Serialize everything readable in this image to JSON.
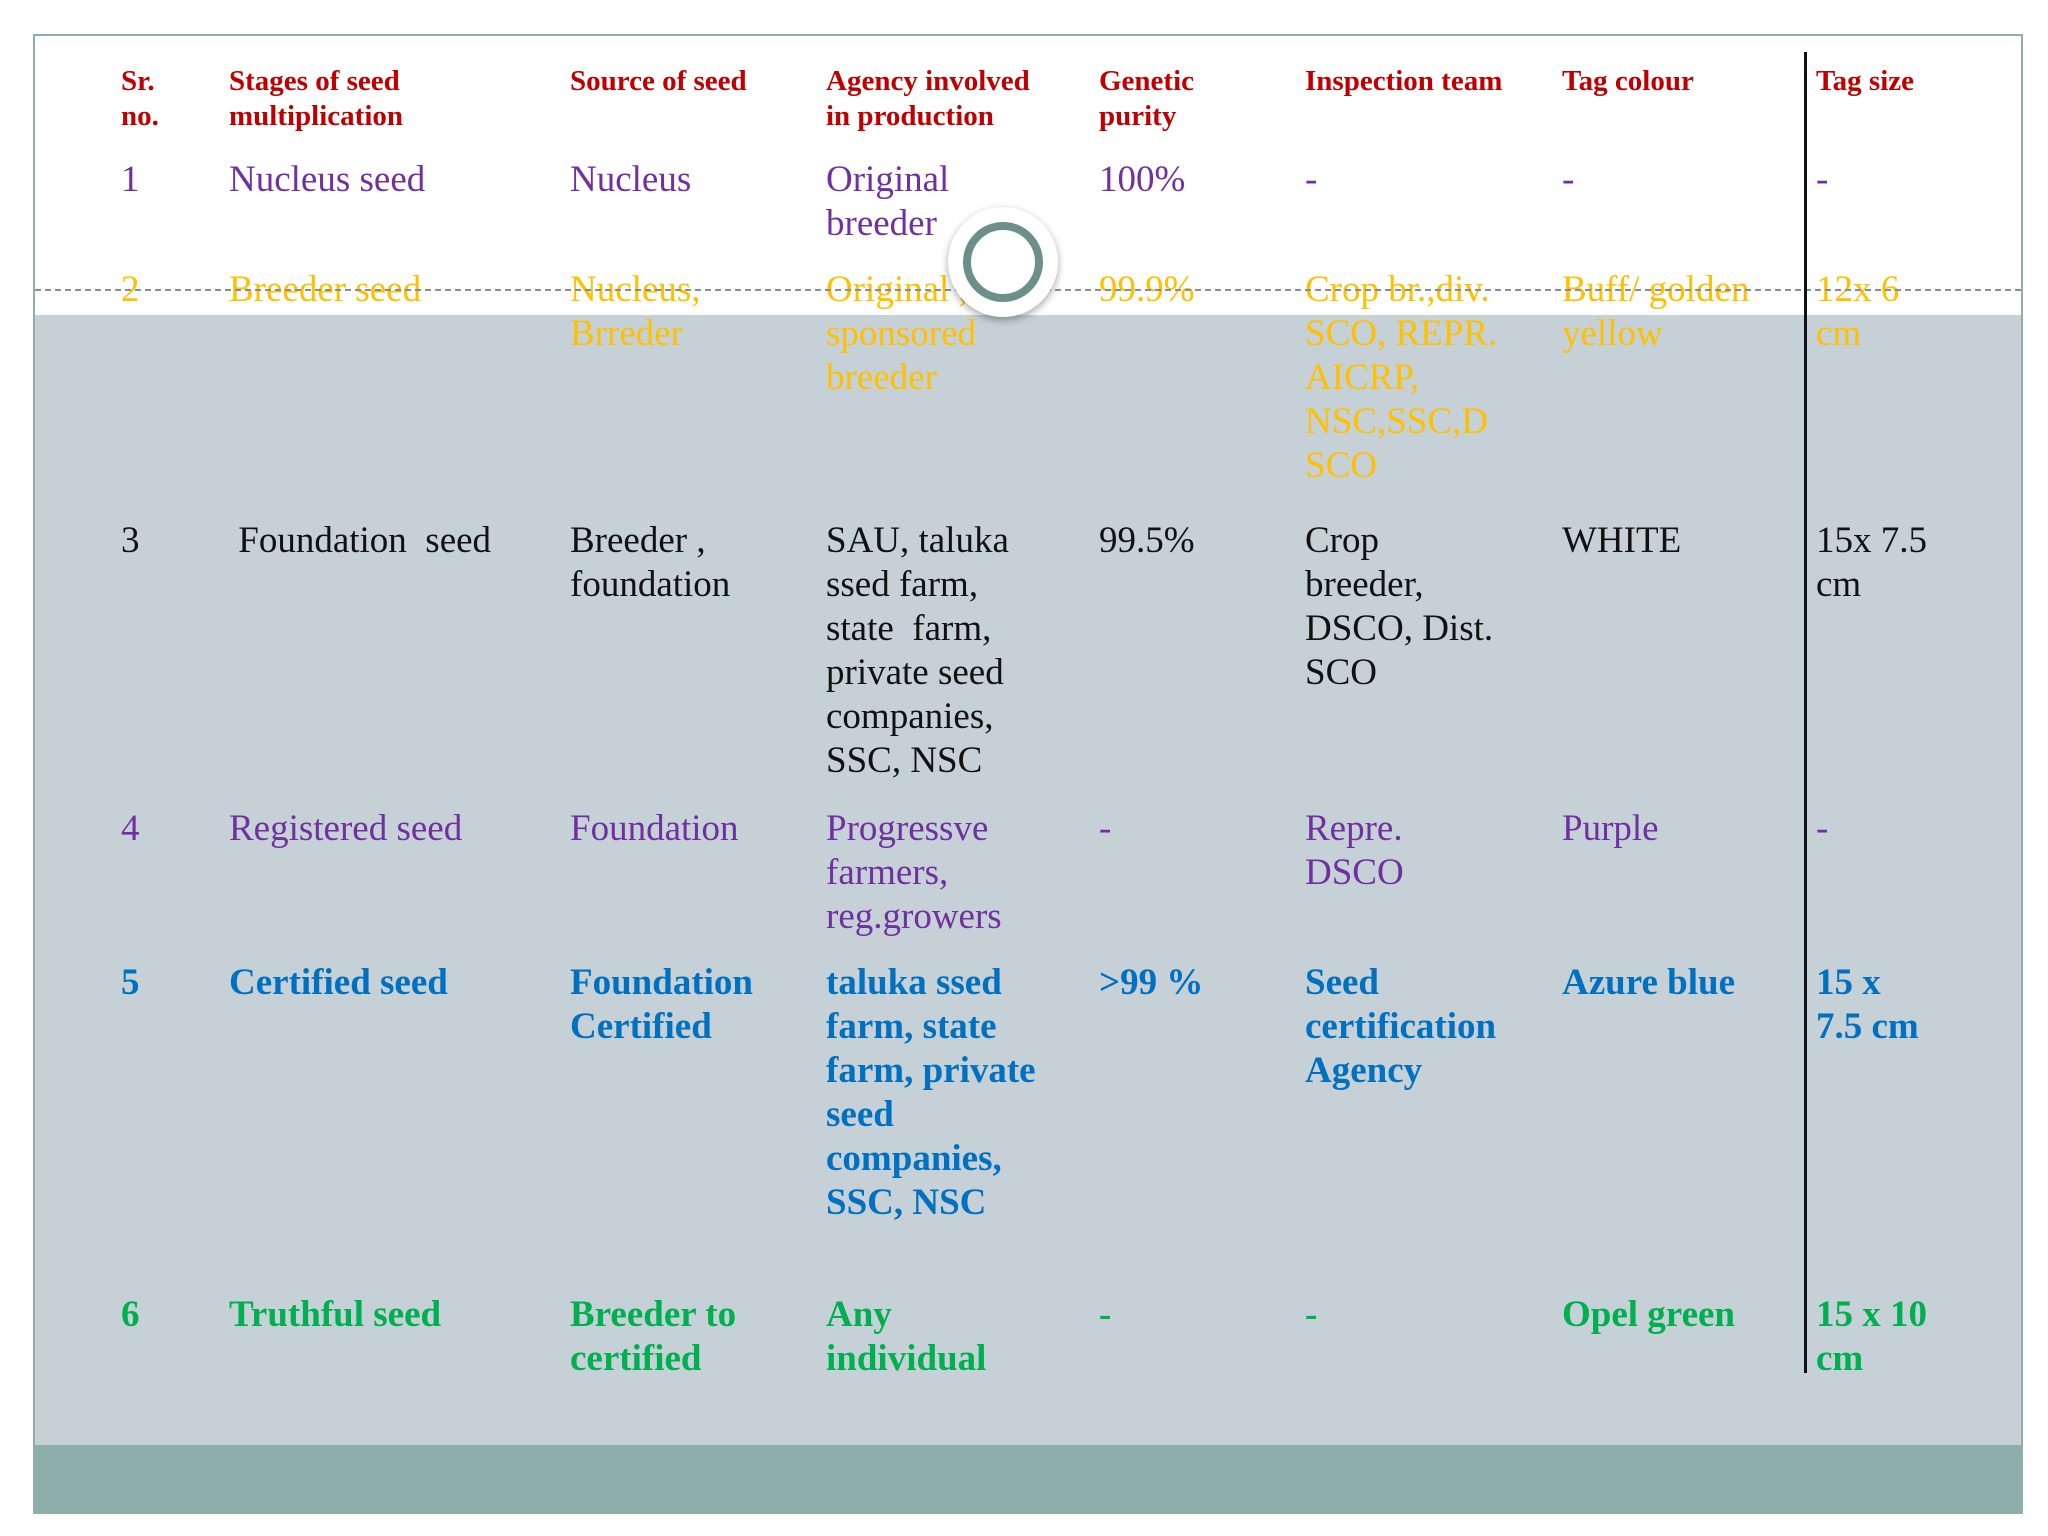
{
  "table": {
    "headers": [
      [
        "Sr.",
        "no."
      ],
      [
        "Stages of seed",
        "multiplication"
      ],
      [
        "Source of seed"
      ],
      [
        "Agency involved",
        "in production"
      ],
      [
        "Genetic",
        "purity"
      ],
      [
        "Inspection team"
      ],
      [
        "Tag colour"
      ],
      [
        "Tag size"
      ]
    ],
    "rows": [
      {
        "color": "#7030a0",
        "cells": [
          [
            "1"
          ],
          [
            "Nucleus seed"
          ],
          [
            "Nucleus"
          ],
          [
            "Original",
            "breeder"
          ],
          [
            "100%"
          ],
          [
            "-"
          ],
          [
            "-"
          ],
          [
            "-"
          ]
        ]
      },
      {
        "color": "#ffc000",
        "strike": true,
        "cells": [
          [
            "2"
          ],
          [
            "Breeder seed"
          ],
          [
            "Nucleus,",
            "Brreder"
          ],
          [
            "Original ,",
            "sponsored",
            "breeder"
          ],
          [
            "99.9%"
          ],
          [
            "Crop br.,div.",
            "SCO, REPR.",
            "AICRP,",
            "NSC,SSC,D",
            "SCO"
          ],
          [
            "Buff/ golden",
            "yellow"
          ],
          [
            "12x 6",
            "cm"
          ]
        ]
      },
      {
        "color": "#111111",
        "cells": [
          [
            "3"
          ],
          [
            " Foundation  seed"
          ],
          [
            "Breeder ,",
            "foundation"
          ],
          [
            "SAU, taluka",
            "ssed farm,",
            "state  farm,",
            "private seed",
            "companies,",
            "SSC, NSC"
          ],
          [
            "99.5%"
          ],
          [
            "Crop",
            "breeder,",
            "DSCO, Dist.",
            "SCO"
          ],
          [
            "WHITE"
          ],
          [
            "15x 7.5",
            "cm"
          ]
        ]
      },
      {
        "color": "#7030a0",
        "cells": [
          [
            "4"
          ],
          [
            "Registered seed"
          ],
          [
            "Foundation"
          ],
          [
            "Progressve",
            "farmers,",
            "reg.growers"
          ],
          [
            "-"
          ],
          [
            "Repre.",
            "DSCO"
          ],
          [
            "Purple"
          ],
          [
            "-"
          ]
        ]
      },
      {
        "color": "#0070c0",
        "bold": true,
        "cells": [
          [
            "5"
          ],
          [
            "Certified seed"
          ],
          [
            "Foundation",
            "Certified"
          ],
          [
            "taluka ssed",
            "farm, state",
            "farm, private",
            "seed",
            "companies,",
            "SSC, NSC"
          ],
          [
            ">99 %"
          ],
          [
            "Seed",
            "certification",
            "Agency"
          ],
          [
            "Azure blue"
          ],
          [
            "15 x",
            "7.5 cm"
          ]
        ]
      },
      {
        "color": "#00b050",
        "bold": true,
        "cells": [
          [
            "6"
          ],
          [
            "Truthful seed"
          ],
          [
            "Breeder to",
            "certified"
          ],
          [
            "Any",
            "individual"
          ],
          [
            "-"
          ],
          [
            "-"
          ],
          [
            "Opel green"
          ],
          [
            "15 x 10",
            "cm"
          ]
        ]
      }
    ]
  }
}
